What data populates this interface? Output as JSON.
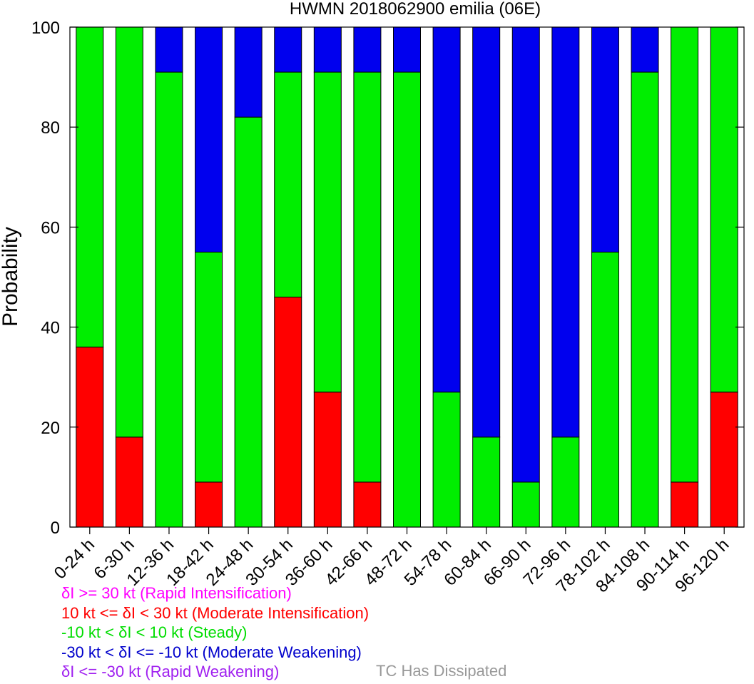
{
  "chart_data": {
    "type": "bar",
    "stacked": true,
    "title": "HWMN 2018062900 emilia (06E)",
    "xlabel": "",
    "ylabel": "Probability",
    "ylim": [
      0,
      100
    ],
    "yticks": [
      0,
      20,
      40,
      60,
      80,
      100
    ],
    "categories": [
      "0-24 h",
      "6-30 h",
      "12-36 h",
      "18-42 h",
      "24-48 h",
      "30-54 h",
      "36-60 h",
      "42-66 h",
      "48-72 h",
      "54-78 h",
      "60-84 h",
      "66-90 h",
      "72-96 h",
      "78-102 h",
      "84-108 h",
      "90-114 h",
      "96-120 h"
    ],
    "series": [
      {
        "name": "10 kt <= δI < 30 kt (Moderate Intensification)",
        "color": "#ff0000",
        "values": [
          36,
          18,
          0,
          9,
          0,
          46,
          27,
          9,
          0,
          0,
          0,
          0,
          0,
          0,
          0,
          9,
          27
        ]
      },
      {
        "name": "-10 kt < δI < 10 kt (Steady)",
        "color": "#00ee00",
        "values": [
          64,
          82,
          91,
          46,
          82,
          45,
          64,
          82,
          91,
          27,
          18,
          9,
          18,
          55,
          91,
          91,
          73
        ]
      },
      {
        "name": "-30 kt < δI <= -10 kt (Moderate Weakening)",
        "color": "#0000ee",
        "values": [
          0,
          0,
          9,
          45,
          18,
          9,
          9,
          9,
          9,
          73,
          82,
          91,
          82,
          45,
          9,
          0,
          0
        ]
      }
    ],
    "grid": false
  },
  "legend": [
    {
      "text": "δI >= 30 kt (Rapid Intensification)",
      "color": "#ff00ff"
    },
    {
      "text": "10 kt <= δI < 30 kt (Moderate Intensification)",
      "color": "#ff0000"
    },
    {
      "text": "-10 kt < δI < 10 kt (Steady)",
      "color": "#00dd00"
    },
    {
      "text": "-30 kt < δI <= -10 kt (Moderate Weakening)",
      "color": "#0000cc"
    },
    {
      "text": "δI <= -30 kt (Rapid Weakening)",
      "color": "#a020f0"
    }
  ],
  "dissipated": {
    "text": "TC Has Dissipated",
    "color": "#999999"
  }
}
